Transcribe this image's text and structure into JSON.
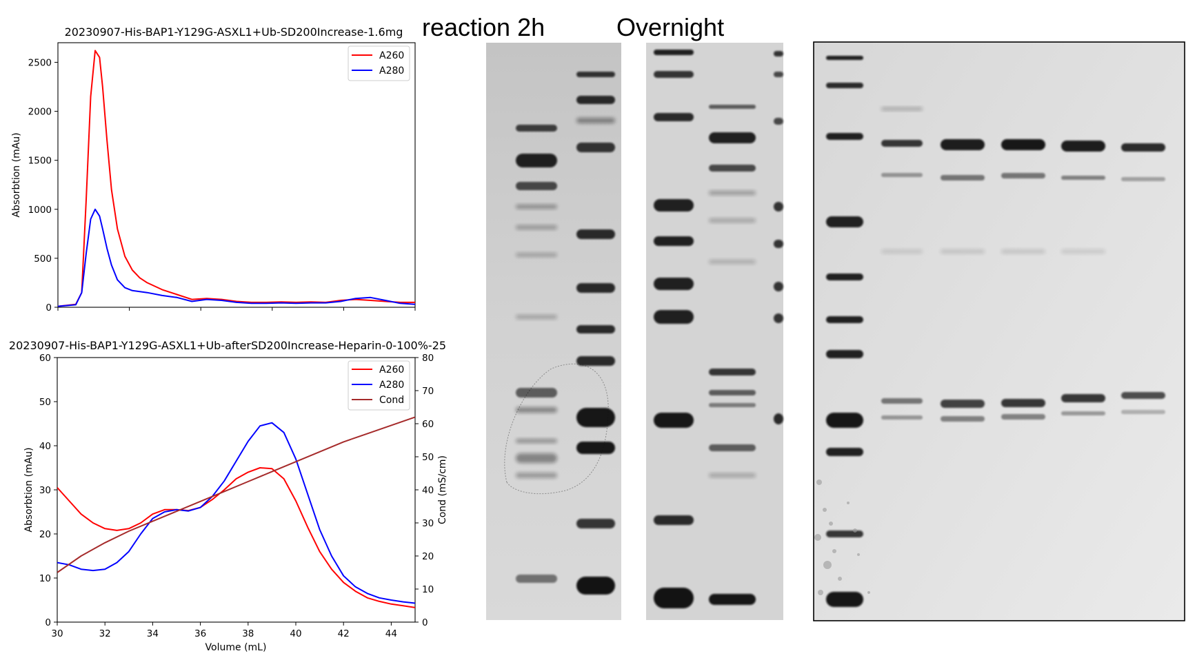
{
  "header_labels": {
    "left": "reaction  2h",
    "right": "Overnight"
  },
  "colors": {
    "a260": "#ff0000",
    "a280": "#0000ff",
    "cond": "#a52a2a"
  },
  "chart_data": [
    {
      "type": "line",
      "title": "20230907-His-BAP1-Y129G-ASXL1+Ub-SD200Increase-1.6mg",
      "xlabel": "",
      "ylabel": "Absorbtion (mAu)",
      "xlim": [
        0,
        24
      ],
      "ylim": [
        0,
        2700
      ],
      "yticks": [
        0,
        500,
        1000,
        1500,
        2000,
        2500
      ],
      "xtick_positions": [
        0,
        4.8,
        9.6,
        14.4,
        19.2,
        24
      ],
      "xtick_labels": [
        "",
        "",
        "",
        "",
        "",
        ""
      ],
      "legend": "top-right",
      "series": [
        {
          "name": "A260",
          "color": "#ff0000",
          "x": [
            0,
            1.2,
            1.6,
            1.9,
            2.2,
            2.5,
            2.8,
            3.0,
            3.3,
            3.6,
            4.0,
            4.5,
            5.0,
            5.5,
            6.0,
            7.0,
            8.0,
            9.0,
            10.0,
            11.0,
            12.0,
            13.0,
            14.0,
            15.0,
            16.0,
            17.0,
            18.0,
            19.0,
            20.0,
            21.0,
            22.0,
            23.0,
            24.0
          ],
          "y": [
            10,
            30,
            150,
            1100,
            2150,
            2620,
            2550,
            2250,
            1700,
            1200,
            800,
            520,
            380,
            300,
            250,
            180,
            130,
            80,
            90,
            80,
            60,
            50,
            50,
            55,
            50,
            55,
            50,
            70,
            80,
            70,
            60,
            50,
            50
          ]
        },
        {
          "name": "A280",
          "color": "#0000ff",
          "x": [
            0,
            1.2,
            1.6,
            1.9,
            2.2,
            2.5,
            2.8,
            3.0,
            3.3,
            3.6,
            4.0,
            4.5,
            5.0,
            5.5,
            6.0,
            7.0,
            8.0,
            9.0,
            10.0,
            11.0,
            12.0,
            13.0,
            14.0,
            15.0,
            16.0,
            17.0,
            18.0,
            19.0,
            20.0,
            21.0,
            22.0,
            23.0,
            24.0
          ],
          "y": [
            10,
            25,
            150,
            550,
            900,
            1000,
            930,
            800,
            600,
            430,
            280,
            200,
            170,
            160,
            150,
            120,
            100,
            60,
            80,
            70,
            50,
            40,
            40,
            45,
            40,
            45,
            45,
            60,
            90,
            100,
            70,
            40,
            30
          ]
        }
      ]
    },
    {
      "type": "line",
      "title": "20230907-His-BAP1-Y129G-ASXL1+Ub-afterSD200Increase-Heparin-0-100%-25",
      "xlabel": "Volume (mL)",
      "ylabel": "Absorbtion (mAu)",
      "y2label": "Cond (mS/cm)",
      "xlim": [
        30,
        45
      ],
      "ylim": [
        0,
        60
      ],
      "y2lim": [
        0,
        80
      ],
      "xticks": [
        30,
        32,
        34,
        36,
        38,
        40,
        42,
        44
      ],
      "yticks": [
        0,
        10,
        20,
        30,
        40,
        50,
        60
      ],
      "y2ticks": [
        0,
        10,
        20,
        30,
        40,
        50,
        60,
        70,
        80
      ],
      "legend": "top-right",
      "series": [
        {
          "name": "A260",
          "color": "#ff0000",
          "axis": "left",
          "x": [
            30,
            30.5,
            31,
            31.5,
            32,
            32.5,
            33,
            33.5,
            34,
            34.5,
            35,
            35.5,
            36,
            36.5,
            37,
            37.5,
            38,
            38.5,
            39,
            39.5,
            40,
            40.5,
            41,
            41.5,
            42,
            42.5,
            43,
            43.5,
            44,
            44.5,
            45
          ],
          "y": [
            30.5,
            27.5,
            24.5,
            22.5,
            21.2,
            20.8,
            21.2,
            22.5,
            24.5,
            25.5,
            25.5,
            25.3,
            26.0,
            27.8,
            30.0,
            32.5,
            34.0,
            35.0,
            34.8,
            32.5,
            27.5,
            21.5,
            16.0,
            12.0,
            9.0,
            7.0,
            5.5,
            4.7,
            4.1,
            3.7,
            3.3
          ]
        },
        {
          "name": "A280",
          "color": "#0000ff",
          "axis": "left",
          "x": [
            30,
            30.5,
            31,
            31.5,
            32,
            32.5,
            33,
            33.5,
            34,
            34.5,
            35,
            35.5,
            36,
            36.5,
            37,
            37.5,
            38,
            38.5,
            39,
            39.5,
            40,
            40.5,
            41,
            41.5,
            42,
            42.5,
            43,
            43.5,
            44,
            44.5,
            45
          ],
          "y": [
            13.5,
            13.0,
            12.0,
            11.7,
            12.0,
            13.5,
            16.0,
            20.0,
            23.5,
            25.0,
            25.5,
            25.2,
            26.0,
            28.5,
            32.0,
            36.5,
            41.0,
            44.5,
            45.2,
            43.0,
            37.0,
            29.0,
            21.0,
            15.0,
            10.5,
            8.0,
            6.5,
            5.5,
            5.0,
            4.6,
            4.3
          ]
        },
        {
          "name": "Cond",
          "color": "#a52a2a",
          "axis": "right",
          "x": [
            30,
            31,
            32,
            33,
            34,
            35,
            36,
            37,
            38,
            39,
            40,
            41,
            42,
            43,
            44,
            45
          ],
          "y": [
            15,
            20,
            24,
            27.5,
            30.5,
            33.5,
            36.5,
            39.5,
            42.5,
            45.5,
            48.5,
            51.5,
            54.5,
            57,
            59.5,
            62
          ]
        }
      ]
    }
  ]
}
